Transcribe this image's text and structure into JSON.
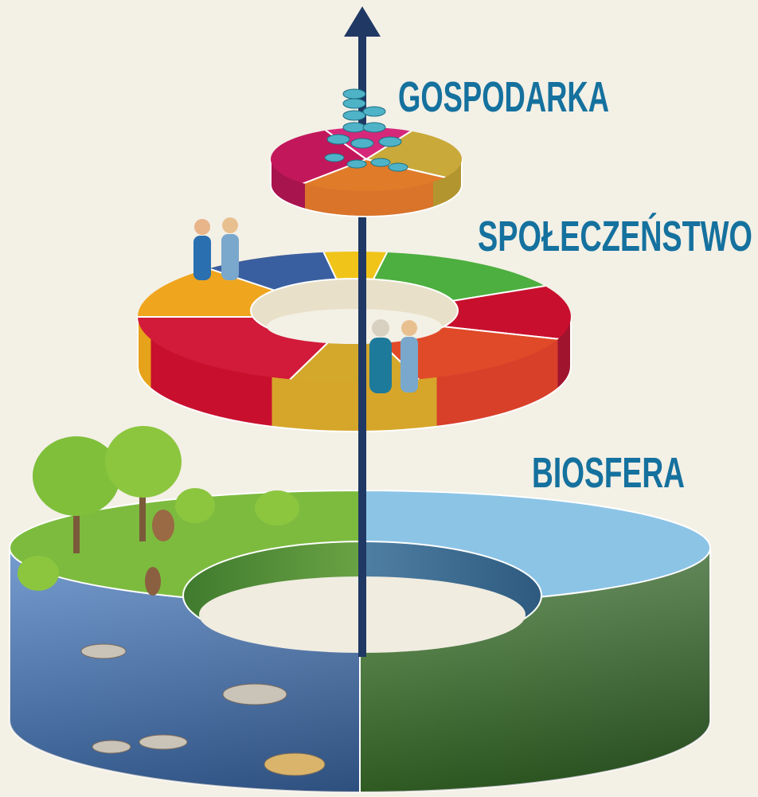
{
  "labels": {
    "economy": "GOSPODARKA",
    "society": "SPOŁECZEŃSTWO",
    "biosphere": "BIOSFERA"
  }
}
